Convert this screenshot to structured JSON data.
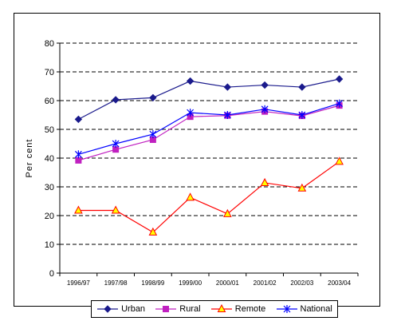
{
  "chart_data": {
    "type": "line",
    "title": "",
    "xlabel": "",
    "ylabel": "Per cent",
    "ylim": [
      0,
      80
    ],
    "yticks": [
      0,
      10,
      20,
      30,
      40,
      50,
      60,
      70,
      80
    ],
    "grid": "horizontal dashed",
    "legend_position": "bottom",
    "categories": [
      "1996/97",
      "1997/98",
      "1998/99",
      "1999/00",
      "2000/01",
      "2001/02",
      "2002/03",
      "2003/04"
    ],
    "series": [
      {
        "name": "Urban",
        "color": "#1a1a8c",
        "marker": "diamond",
        "values": [
          53.5,
          60.3,
          61,
          66.8,
          64.7,
          65.4,
          64.7,
          67.5
        ]
      },
      {
        "name": "Rural",
        "color": "#c020c0",
        "marker": "square",
        "values": [
          39.2,
          43,
          46.4,
          54.4,
          54.8,
          56.2,
          54.7,
          58.3
        ]
      },
      {
        "name": "Remote",
        "color": "#ff0000",
        "marker": "triangle",
        "values": [
          21.8,
          21.8,
          14.2,
          26.3,
          20.6,
          31.4,
          29.5,
          38.8
        ]
      },
      {
        "name": "National",
        "color": "#0000ff",
        "marker": "asterisk",
        "values": [
          41.3,
          45,
          48.3,
          55.8,
          55,
          57,
          55,
          59
        ]
      }
    ]
  }
}
